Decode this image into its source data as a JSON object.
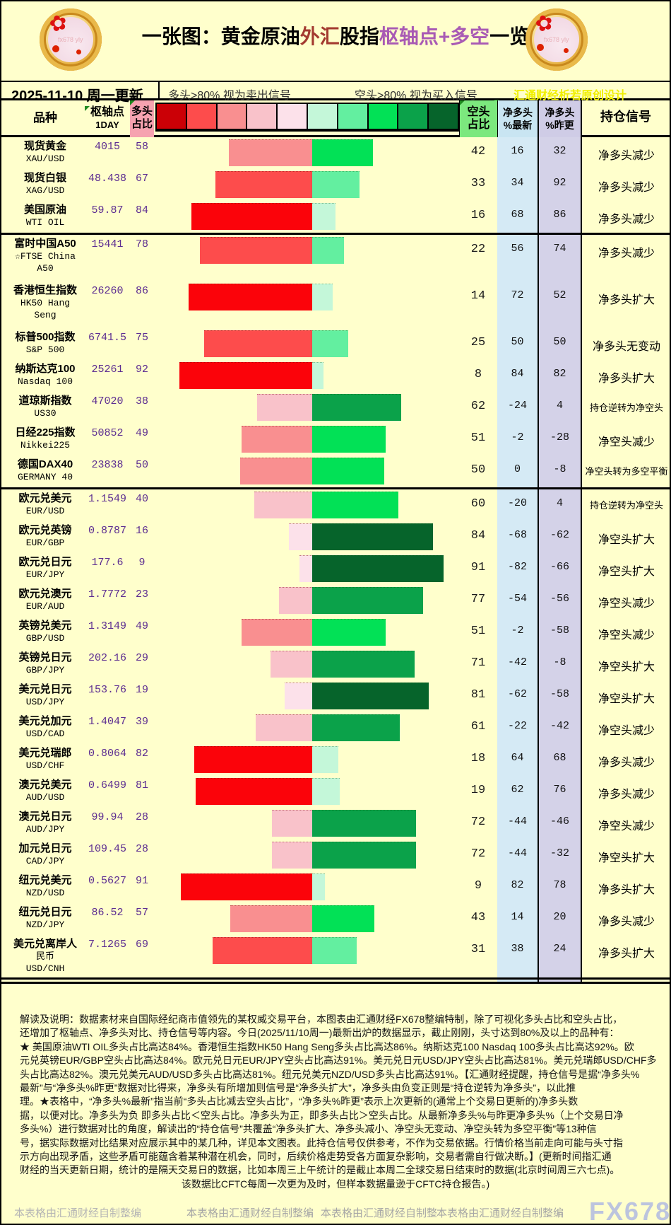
{
  "title": {
    "parts": [
      {
        "text": "一张图：黄金原油",
        "color": "#000000"
      },
      {
        "text": "外汇",
        "color": "#a33a2f"
      },
      {
        "text": "股指",
        "color": "#000000"
      },
      {
        "text": "枢轴点+多空",
        "color": "#a85ab4"
      },
      {
        "text": "一览",
        "color": "#000000"
      }
    ],
    "logo_text": "fx678 yly"
  },
  "toolbar": {
    "date_label": "2025-11-10 周一更新",
    "long_note": "多头>80% 视为卖出信号",
    "short_note": "空头>80% 视为买入信号",
    "credit": "汇通财经析若原创设计"
  },
  "header": {
    "species": "品种",
    "pivot": "枢轴点",
    "pivot_sub": "1DAY",
    "long_l1": "多头",
    "long_l2": "占比",
    "short_l1": "空头",
    "short_l2": "占比",
    "net_new_l1": "净多头",
    "net_new_l2": "%最新",
    "net_prev_l1": "净多头",
    "net_prev_l2": "%昨更",
    "signal": "持仓信号"
  },
  "colors": {
    "page_bg": "#ffffcc",
    "scale": [
      "#cb0006",
      "#fd4c4c",
      "#f98f90",
      "#f9c2ca",
      "#fce1ea",
      "#c4f7d9",
      "#63efa0",
      "#02e156",
      "#0ba24a",
      "#06642b"
    ],
    "long_buckets": [
      [
        80,
        "#fb030a"
      ],
      [
        60,
        "#fd4c4c"
      ],
      [
        40,
        "#f98f90"
      ],
      [
        20,
        "#f9c2ca"
      ],
      [
        -1,
        "#fce1ea"
      ]
    ],
    "short_buckets": [
      [
        80,
        "#06642b"
      ],
      [
        60,
        "#0ba24a"
      ],
      [
        40,
        "#02e156"
      ],
      [
        20,
        "#63efa0"
      ],
      [
        -1,
        "#c4f7d9"
      ]
    ],
    "pivot_text": "#5c2d91",
    "net_new_bg": "#d5eaf5",
    "net_prev_bg": "#d4d2e8"
  },
  "chart_data": {
    "type": "bar",
    "subtype": "diverging-horizontal",
    "value_unit": "%",
    "value_range": [
      0,
      100
    ],
    "legend": [
      "多头>80% 视为卖出信号",
      "空头>80% 视为买入信号"
    ],
    "columns": [
      "品种",
      "枢轴点1DAY",
      "多头占比",
      "空头占比",
      "净多头%最新",
      "净多头%昨更",
      "持仓信号"
    ],
    "rows": [
      {
        "name_lines": [
          "现货黄金",
          "XAU/USD"
        ],
        "pivot": "4015",
        "long": 58,
        "short": 42,
        "net_new": "16",
        "net_prev": "32",
        "signal": "净多头减少",
        "sep": false
      },
      {
        "name_lines": [
          "现货白银",
          "XAG/USD"
        ],
        "pivot": "48.438",
        "long": 67,
        "short": 33,
        "net_new": "34",
        "net_prev": "92",
        "signal": "净多头减少",
        "sep": false
      },
      {
        "name_lines": [
          "美国原油",
          "WTI OIL"
        ],
        "pivot": "59.87",
        "long": 84,
        "short": 16,
        "net_new": "68",
        "net_prev": "86",
        "signal": "净多头减少",
        "sep": true
      },
      {
        "name_lines": [
          "富时中国A50",
          "☆FTSE China",
          "A50"
        ],
        "pivot": "15441",
        "long": 78,
        "short": 22,
        "net_new": "56",
        "net_prev": "74",
        "signal": "净多头减少",
        "sep": false
      },
      {
        "name_lines": [
          "香港恒生指数",
          "HK50 Hang",
          "Seng"
        ],
        "pivot": "26260",
        "long": 86,
        "short": 14,
        "net_new": "72",
        "net_prev": "52",
        "signal": "净多头扩大",
        "sep": false
      },
      {
        "name_lines": [
          "标普500指数",
          "S&P 500"
        ],
        "pivot": "6741.5",
        "long": 75,
        "short": 25,
        "net_new": "50",
        "net_prev": "50",
        "signal": "净多头无变动",
        "sep": false
      },
      {
        "name_lines": [
          "纳斯达克100",
          "Nasdaq 100"
        ],
        "pivot": "25261",
        "long": 92,
        "short": 8,
        "net_new": "84",
        "net_prev": "82",
        "signal": "净多头扩大",
        "sep": false
      },
      {
        "name_lines": [
          "道琼斯指数",
          "US30"
        ],
        "pivot": "47020",
        "long": 38,
        "short": 62,
        "net_new": "-24",
        "net_prev": "4",
        "signal": "持仓逆转为净空头",
        "sep": false
      },
      {
        "name_lines": [
          "日经225指数",
          "Nikkei225"
        ],
        "pivot": "50852",
        "long": 49,
        "short": 51,
        "net_new": "-2",
        "net_prev": "-28",
        "signal": "净空头减少",
        "sep": false
      },
      {
        "name_lines": [
          "德国DAX40",
          "GERMANY 40"
        ],
        "pivot": "23838",
        "long": 50,
        "short": 50,
        "net_new": "0",
        "net_prev": "-8",
        "signal": "净空头转为多空平衡",
        "sep": true
      },
      {
        "name_lines": [
          "欧元兑美元",
          "EUR/USD"
        ],
        "pivot": "1.1549",
        "long": 40,
        "short": 60,
        "net_new": "-20",
        "net_prev": "4",
        "signal": "持仓逆转为净空头",
        "sep": false
      },
      {
        "name_lines": [
          "欧元兑英镑",
          "EUR/GBP"
        ],
        "pivot": "0.8787",
        "long": 16,
        "short": 84,
        "net_new": "-68",
        "net_prev": "-62",
        "signal": "净空头扩大",
        "sep": false
      },
      {
        "name_lines": [
          "欧元兑日元",
          "EUR/JPY"
        ],
        "pivot": "177.6",
        "long": 9,
        "short": 91,
        "net_new": "-82",
        "net_prev": "-66",
        "signal": "净空头扩大",
        "sep": false
      },
      {
        "name_lines": [
          "欧元兑澳元",
          "EUR/AUD"
        ],
        "pivot": "1.7772",
        "long": 23,
        "short": 77,
        "net_new": "-54",
        "net_prev": "-56",
        "signal": "净空头减少",
        "sep": false
      },
      {
        "name_lines": [
          "英镑兑美元",
          "GBP/USD"
        ],
        "pivot": "1.3149",
        "long": 49,
        "short": 51,
        "net_new": "-2",
        "net_prev": "-58",
        "signal": "净空头减少",
        "sep": false
      },
      {
        "name_lines": [
          "英镑兑日元",
          "GBP/JPY"
        ],
        "pivot": "202.16",
        "long": 29,
        "short": 71,
        "net_new": "-42",
        "net_prev": "-8",
        "signal": "净空头扩大",
        "sep": false
      },
      {
        "name_lines": [
          "美元兑日元",
          "USD/JPY"
        ],
        "pivot": "153.76",
        "long": 19,
        "short": 81,
        "net_new": "-62",
        "net_prev": "-58",
        "signal": "净空头扩大",
        "sep": false
      },
      {
        "name_lines": [
          "美元兑加元",
          "USD/CAD"
        ],
        "pivot": "1.4047",
        "long": 39,
        "short": 61,
        "net_new": "-22",
        "net_prev": "-42",
        "signal": "净空头减少",
        "sep": false
      },
      {
        "name_lines": [
          "美元兑瑞郎",
          "USD/CHF"
        ],
        "pivot": "0.8064",
        "long": 82,
        "short": 18,
        "net_new": "64",
        "net_prev": "68",
        "signal": "净多头减少",
        "sep": false
      },
      {
        "name_lines": [
          "澳元兑美元",
          "AUD/USD"
        ],
        "pivot": "0.6499",
        "long": 81,
        "short": 19,
        "net_new": "62",
        "net_prev": "76",
        "signal": "净多头减少",
        "sep": false
      },
      {
        "name_lines": [
          "澳元兑日元",
          "AUD/JPY"
        ],
        "pivot": "99.94",
        "long": 28,
        "short": 72,
        "net_new": "-44",
        "net_prev": "-46",
        "signal": "净空头减少",
        "sep": false
      },
      {
        "name_lines": [
          "加元兑日元",
          "CAD/JPY"
        ],
        "pivot": "109.45",
        "long": 28,
        "short": 72,
        "net_new": "-44",
        "net_prev": "-32",
        "signal": "净空头扩大",
        "sep": false
      },
      {
        "name_lines": [
          "纽元兑美元",
          "NZD/USD"
        ],
        "pivot": "0.5627",
        "long": 91,
        "short": 9,
        "net_new": "82",
        "net_prev": "78",
        "signal": "净多头扩大",
        "sep": false
      },
      {
        "name_lines": [
          "纽元兑日元",
          "NZD/JPY"
        ],
        "pivot": "86.52",
        "long": 57,
        "short": 43,
        "net_new": "14",
        "net_prev": "20",
        "signal": "净多头减少",
        "sep": false
      },
      {
        "name_lines": [
          "美元兑离岸人",
          "民币",
          "USD/CNH"
        ],
        "pivot": "7.1265",
        "long": 69,
        "short": 31,
        "net_new": "38",
        "net_prev": "24",
        "signal": "净多头扩大",
        "sep": true
      }
    ]
  },
  "explain": {
    "lines": [
      "解读及说明：数据素材来自国际经纪商市值领先的某权威交易平台，本图表由汇通财经FX678整编特制，除了可视化多头占比和空头占比，",
      "还增加了枢轴点、净多头对比、持仓信号等内容。今日(2025/11/10周一)最新出炉的数据显示，截止刚刚，头寸达到80%及以上的品种有：",
      "★ 美国原油WTI OIL多头占比高达84%。香港恒生指数HK50 Hang Seng多头占比高达86%。纳斯达克100 Nasdaq 100多头占比高达92%。欧",
      "元兑英镑EUR/GBP空头占比高达84%。欧元兑日元EUR/JPY空头占比高达91%。美元兑日元USD/JPY空头占比高达81%。美元兑瑞郎USD/CHF多",
      "头占比高达82%。澳元兑美元AUD/USD多头占比高达81%。纽元兑美元NZD/USD多头占比高达91%。【汇通财经提醒，持仓信号是据“净多头%",
      "最新”与“净多头%昨更”数据对比得来，净多头有所增加则信号是“净多头扩大”，净多头由负变正则是“持仓逆转为净多头”，以此推",
      "理。★表格中，“净多头%最新”指当前“多头占比减去空头占比”，“净多头%昨更”表示上次更新的(通常上个交易日更新的)净多头数",
      "据，以便对比。净多头为负 即多头占比＜空头占比。净多头为正，即多头占比＞空头占比。从最新净多头%与昨更净多头%（上个交易日净",
      "多头%）进行数据对比的角度，解读出的“持仓信号”共覆盖“净多头扩大、净多头减小、净空头无变动、净空头转为多空平衡”等13种信",
      "号，据实际数据对比结果对应展示其中的某几种，详见本文图表。此持仓信号仅供参考，不作为交易依据。行情价格当前走向可能与头寸指",
      "示方向出现矛盾，这些矛盾可能蕴含着某种潜在机会，同时，后续价格走势受各方面复杂影响，交易者需自行做决断。】(更新时间指汇通",
      "财经的当天更新日期，统计的是隔天交易日的数据，比如本周三上午统计的是截止本周二全球交易日结束时的数据(北京时间周三六七点)。",
      "该数据比CFTC每周一次更为及时，但样本数据量逊于CFTC持仓报告。)"
    ]
  },
  "footer": {
    "credits": [
      "本表格由汇通财经自制整编",
      "本表格由汇通财经自制整编",
      "本表格由汇通财经自制整",
      "本表格由汇通财经自制整编"
    ],
    "watermark": "FX678"
  }
}
